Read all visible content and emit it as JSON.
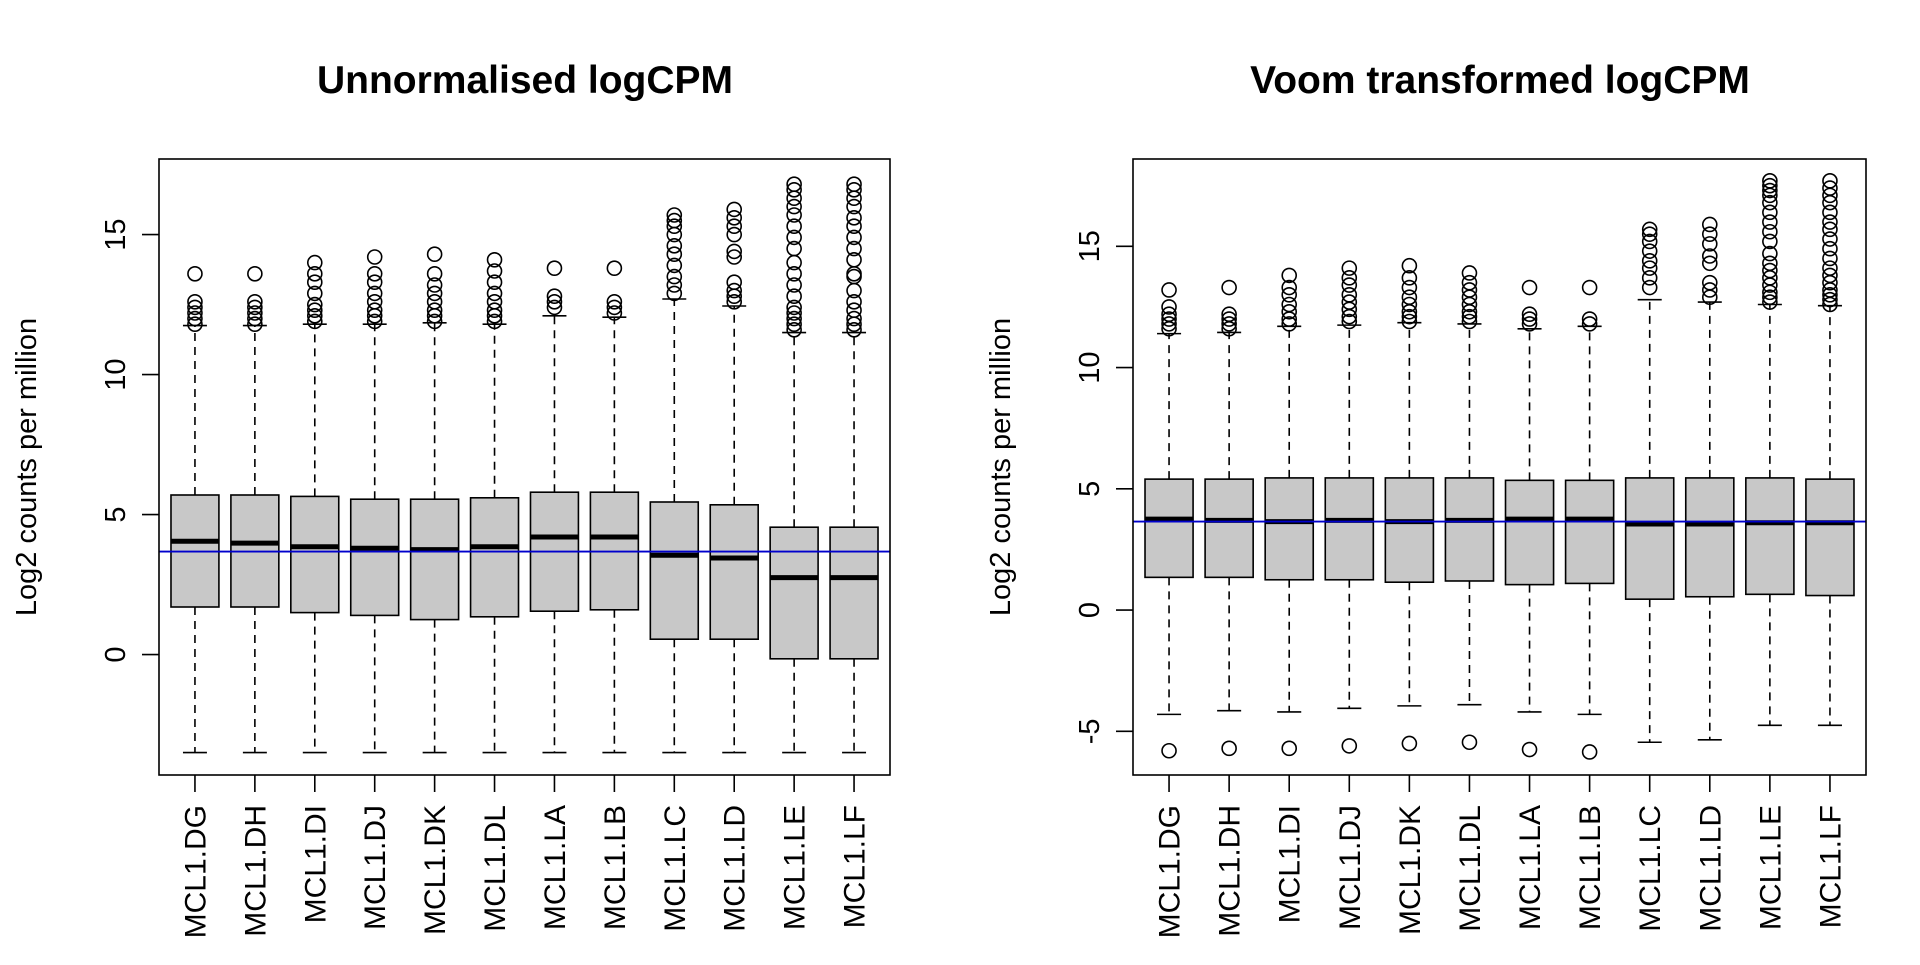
{
  "chart_data": [
    {
      "type": "boxplot",
      "title": "Unnormalised logCPM",
      "ylabel": "Log2 counts per million",
      "xlabel": "",
      "ylim": [
        -4.3,
        17.7
      ],
      "yticks": [
        0,
        5,
        10,
        15
      ],
      "reference_line": {
        "y": 3.68,
        "color": "#0000cc"
      },
      "box_fill": "#c8c8c8",
      "categories": [
        "MCL1.DG",
        "MCL1.DH",
        "MCL1.DI",
        "MCL1.DJ",
        "MCL1.DK",
        "MCL1.DL",
        "MCL1.LA",
        "MCL1.LB",
        "MCL1.LC",
        "MCL1.LD",
        "MCL1.LE",
        "MCL1.LF"
      ],
      "boxes": [
        {
          "whisker_low": -3.5,
          "q1": 1.7,
          "median": 4.05,
          "q3": 5.7,
          "whisker_high": 11.75,
          "outliers_high": [
            11.8,
            12.0,
            12.2,
            12.4,
            12.6,
            13.6
          ],
          "outliers_low": []
        },
        {
          "whisker_low": -3.5,
          "q1": 1.7,
          "median": 3.98,
          "q3": 5.7,
          "whisker_high": 11.75,
          "outliers_high": [
            11.8,
            12.0,
            12.2,
            12.4,
            12.6,
            13.6
          ],
          "outliers_low": []
        },
        {
          "whisker_low": -3.5,
          "q1": 1.5,
          "median": 3.85,
          "q3": 5.65,
          "whisker_high": 11.8,
          "outliers_high": [
            11.9,
            12.1,
            12.3,
            12.5,
            12.9,
            13.3,
            13.6,
            14.0
          ],
          "outliers_low": []
        },
        {
          "whisker_low": -3.5,
          "q1": 1.4,
          "median": 3.8,
          "q3": 5.55,
          "whisker_high": 11.8,
          "outliers_high": [
            11.9,
            12.1,
            12.3,
            12.6,
            12.9,
            13.3,
            13.6,
            14.2
          ],
          "outliers_low": []
        },
        {
          "whisker_low": -3.5,
          "q1": 1.25,
          "median": 3.75,
          "q3": 5.55,
          "whisker_high": 11.85,
          "outliers_high": [
            11.9,
            12.1,
            12.3,
            12.6,
            12.9,
            13.2,
            13.6,
            14.3
          ],
          "outliers_low": []
        },
        {
          "whisker_low": -3.5,
          "q1": 1.35,
          "median": 3.85,
          "q3": 5.6,
          "whisker_high": 11.8,
          "outliers_high": [
            11.9,
            12.1,
            12.3,
            12.6,
            12.9,
            13.3,
            13.7,
            14.1
          ],
          "outliers_low": []
        },
        {
          "whisker_low": -3.5,
          "q1": 1.55,
          "median": 4.2,
          "q3": 5.8,
          "whisker_high": 12.1,
          "outliers_high": [
            12.4,
            12.6,
            12.8,
            13.8
          ],
          "outliers_low": []
        },
        {
          "whisker_low": -3.5,
          "q1": 1.6,
          "median": 4.2,
          "q3": 5.8,
          "whisker_high": 12.05,
          "outliers_high": [
            12.2,
            12.4,
            12.6,
            13.8
          ],
          "outliers_low": []
        },
        {
          "whisker_low": -3.5,
          "q1": 0.55,
          "median": 3.55,
          "q3": 5.45,
          "whisker_high": 12.7,
          "outliers_high": [
            12.9,
            13.2,
            13.5,
            13.9,
            14.3,
            14.6,
            15.0,
            15.3,
            15.5,
            15.7
          ],
          "outliers_low": []
        },
        {
          "whisker_low": -3.5,
          "q1": 0.55,
          "median": 3.45,
          "q3": 5.35,
          "whisker_high": 12.45,
          "outliers_high": [
            12.6,
            12.8,
            13.0,
            13.3,
            14.2,
            14.4,
            15.0,
            15.3,
            15.6,
            15.9
          ],
          "outliers_low": []
        },
        {
          "whisker_low": -3.5,
          "q1": -0.15,
          "median": 2.75,
          "q3": 4.55,
          "whisker_high": 11.5,
          "outliers_high": [
            11.6,
            11.8,
            12.0,
            12.2,
            12.4,
            12.8,
            13.2,
            13.6,
            14.0,
            14.5,
            14.9,
            15.3,
            15.7,
            16.0,
            16.3,
            16.6,
            16.8
          ],
          "outliers_low": []
        },
        {
          "whisker_low": -3.5,
          "q1": -0.15,
          "median": 2.75,
          "q3": 4.55,
          "whisker_high": 11.5,
          "outliers_high": [
            11.6,
            11.8,
            12.0,
            12.3,
            12.6,
            13.0,
            13.5,
            13.6,
            14.1,
            14.5,
            14.9,
            15.3,
            15.6,
            16.0,
            16.3,
            16.6,
            16.8
          ],
          "outliers_low": []
        }
      ]
    },
    {
      "type": "boxplot",
      "title": "Voom transformed logCPM",
      "ylabel": "Log2 counts per million",
      "xlabel": "",
      "ylim": [
        -6.8,
        18.6
      ],
      "yticks": [
        -5,
        0,
        5,
        10,
        15
      ],
      "reference_line": {
        "y": 3.65,
        "color": "#0000cc"
      },
      "box_fill": "#c8c8c8",
      "categories": [
        "MCL1.DG",
        "MCL1.DH",
        "MCL1.DI",
        "MCL1.DJ",
        "MCL1.DK",
        "MCL1.DL",
        "MCL1.LA",
        "MCL1.LB",
        "MCL1.LC",
        "MCL1.LD",
        "MCL1.LE",
        "MCL1.LF"
      ],
      "boxes": [
        {
          "whisker_low": -4.3,
          "q1": 1.35,
          "median": 3.75,
          "q3": 5.4,
          "whisker_high": 11.4,
          "outliers_high": [
            11.6,
            11.8,
            12.0,
            12.2,
            12.5,
            13.2
          ],
          "outliers_low": [
            -5.8
          ]
        },
        {
          "whisker_low": -4.15,
          "q1": 1.35,
          "median": 3.7,
          "q3": 5.4,
          "whisker_high": 11.45,
          "outliers_high": [
            11.6,
            11.8,
            12.0,
            12.2,
            13.3
          ],
          "outliers_low": [
            -5.7
          ]
        },
        {
          "whisker_low": -4.2,
          "q1": 1.25,
          "median": 3.65,
          "q3": 5.45,
          "whisker_high": 11.7,
          "outliers_high": [
            11.8,
            12.0,
            12.3,
            12.6,
            13.0,
            13.3,
            13.8
          ],
          "outliers_low": [
            -5.7
          ]
        },
        {
          "whisker_low": -4.05,
          "q1": 1.25,
          "median": 3.7,
          "q3": 5.45,
          "whisker_high": 11.75,
          "outliers_high": [
            11.9,
            12.1,
            12.4,
            12.7,
            13.0,
            13.4,
            13.7,
            14.1
          ],
          "outliers_low": [
            -5.6
          ]
        },
        {
          "whisker_low": -3.95,
          "q1": 1.15,
          "median": 3.65,
          "q3": 5.45,
          "whisker_high": 11.85,
          "outliers_high": [
            11.9,
            12.1,
            12.3,
            12.6,
            12.9,
            13.3,
            13.7,
            14.2
          ],
          "outliers_low": [
            -5.5
          ]
        },
        {
          "whisker_low": -3.9,
          "q1": 1.2,
          "median": 3.7,
          "q3": 5.45,
          "whisker_high": 11.8,
          "outliers_high": [
            11.9,
            12.1,
            12.3,
            12.6,
            12.9,
            13.2,
            13.5,
            13.9
          ],
          "outliers_low": [
            -5.45
          ]
        },
        {
          "whisker_low": -4.2,
          "q1": 1.05,
          "median": 3.75,
          "q3": 5.35,
          "whisker_high": 11.6,
          "outliers_high": [
            11.8,
            12.0,
            12.2,
            13.3
          ],
          "outliers_low": [
            -5.75
          ]
        },
        {
          "whisker_low": -4.3,
          "q1": 1.1,
          "median": 3.75,
          "q3": 5.35,
          "whisker_high": 11.7,
          "outliers_high": [
            11.8,
            12.0,
            13.3
          ],
          "outliers_low": [
            -5.85
          ]
        },
        {
          "whisker_low": -5.45,
          "q1": 0.45,
          "median": 3.55,
          "q3": 5.45,
          "whisker_high": 12.8,
          "outliers_high": [
            13.3,
            13.7,
            14.1,
            14.4,
            14.8,
            15.2,
            15.5,
            15.7
          ],
          "outliers_low": []
        },
        {
          "whisker_low": -5.35,
          "q1": 0.55,
          "median": 3.55,
          "q3": 5.45,
          "whisker_high": 12.7,
          "outliers_high": [
            12.9,
            13.2,
            13.5,
            14.3,
            14.6,
            15.1,
            15.5,
            15.9
          ],
          "outliers_low": []
        },
        {
          "whisker_low": -4.75,
          "q1": 0.65,
          "median": 3.6,
          "q3": 5.45,
          "whisker_high": 12.6,
          "outliers_high": [
            12.7,
            12.9,
            13.1,
            13.4,
            13.7,
            14.0,
            14.3,
            14.7,
            15.2,
            15.6,
            16.0,
            16.4,
            16.8,
            17.1,
            17.3,
            17.5,
            17.7
          ],
          "outliers_low": []
        },
        {
          "whisker_low": -4.75,
          "q1": 0.6,
          "median": 3.6,
          "q3": 5.4,
          "whisker_high": 12.55,
          "outliers_high": [
            12.6,
            12.8,
            13.0,
            13.2,
            13.5,
            13.8,
            14.1,
            14.5,
            14.9,
            15.3,
            15.7,
            16.0,
            16.4,
            16.8,
            17.1,
            17.4,
            17.7
          ],
          "outliers_low": []
        }
      ]
    }
  ]
}
